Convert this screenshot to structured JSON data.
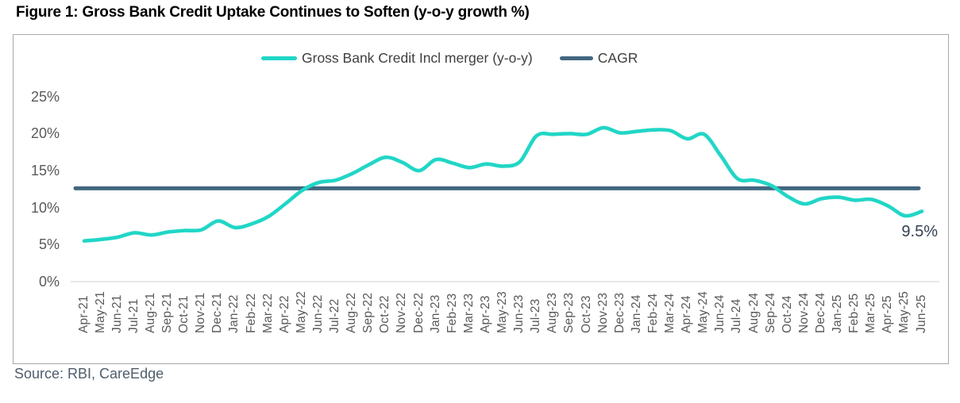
{
  "figure": {
    "title": "Figure 1: Gross Bank Credit Uptake Continues to Soften (y-o-y growth %)",
    "source": "Source: RBI, CareEdge"
  },
  "legend": {
    "items": [
      {
        "label": "Gross Bank Credit Incl merger (y-o-y)",
        "color": "#21d6c6"
      },
      {
        "label": "CAGR",
        "color": "#426780"
      }
    ]
  },
  "annotation": {
    "text": "9.5%"
  },
  "colors": {
    "series_teal": "#21d6c6",
    "cagr_slate": "#426780",
    "axis_text": "#595959",
    "legend_text": "#404040",
    "title_text": "#000000",
    "source_text": "#4f5d6b",
    "box_border": "#a9a9a9",
    "zero_gridline": "#d9d9d9",
    "annotation_text": "#333f50"
  },
  "chart_data": {
    "type": "line",
    "title": "Figure 1: Gross Bank Credit Uptake Continues to Soften (y-o-y growth %)",
    "xlabel": "",
    "ylabel": "y-o-y growth %",
    "ylim": [
      0,
      27
    ],
    "grid": "zero-line-only",
    "legend_position": "top-center",
    "yticks": [
      {
        "label": "25%",
        "value": 25
      },
      {
        "label": "20%",
        "value": 20
      },
      {
        "label": "15%",
        "value": 15
      },
      {
        "label": "10%",
        "value": 10
      },
      {
        "label": "5%",
        "value": 5
      },
      {
        "label": "0%",
        "value": 0
      }
    ],
    "categories": [
      "Apr-21",
      "May-21",
      "Jun-21",
      "Jul-21",
      "Aug-21",
      "Sep-21",
      "Oct-21",
      "Nov-21",
      "Dec-21",
      "Jan-22",
      "Feb-22",
      "Mar-22",
      "Apr-22",
      "May-22",
      "Jun-22",
      "Jul-22",
      "Aug-22",
      "Sep-22",
      "Oct-22",
      "Nov-22",
      "Dec-22",
      "Jan-23",
      "Feb-23",
      "Mar-23",
      "Apr-23",
      "May-23",
      "Jun-23",
      "Jul-23",
      "Aug-23",
      "Sep-23",
      "Oct-23",
      "Nov-23",
      "Dec-23",
      "Jan-24",
      "Feb-24",
      "Mar-24",
      "Apr-24",
      "May-24",
      "Jun-24",
      "Jul-24",
      "Aug-24",
      "Sep-24",
      "Oct-24",
      "Nov-24",
      "Dec-24",
      "Jan-25",
      "Feb-25",
      "Mar-25",
      "Apr-25",
      "May-25",
      "Jun-25"
    ],
    "series": [
      {
        "name": "Gross Bank Credit Incl merger (y-o-y)",
        "type": "smooth-line",
        "color": "#21d6c6",
        "values": [
          5.5,
          5.7,
          6.0,
          6.6,
          6.3,
          6.7,
          6.9,
          7.0,
          8.2,
          7.3,
          7.8,
          8.8,
          10.5,
          12.3,
          13.4,
          13.7,
          14.6,
          15.8,
          16.8,
          16.1,
          15.0,
          16.5,
          16.0,
          15.4,
          15.9,
          15.6,
          16.2,
          19.7,
          19.9,
          20.0,
          19.9,
          20.8,
          20.1,
          20.3,
          20.5,
          20.4,
          19.3,
          19.9,
          17.0,
          13.9,
          13.7,
          13.0,
          11.5,
          10.5,
          11.2,
          11.4,
          11.0,
          11.1,
          10.2,
          8.9,
          9.5
        ]
      },
      {
        "name": "CAGR",
        "type": "constant-line",
        "color": "#426780",
        "value": 12.6
      }
    ],
    "annotation": {
      "text": "9.5%",
      "series": "Gross Bank Credit Incl merger (y-o-y)",
      "category": "Jun-25"
    }
  }
}
